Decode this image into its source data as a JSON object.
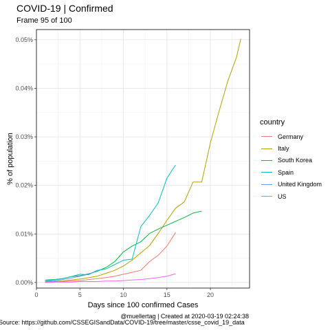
{
  "title": "COVID-19 | Confirmed",
  "subtitle": "Frame 95 of 100",
  "caption_line1": "@muellertag | Created at  2020-03-19 02:24:38",
  "caption_line2": "Source: https://github.com/CSSEGISandData/COVID-19/tree/master/csse_covid_19_data",
  "chart_data": {
    "type": "line",
    "xlabel": "Days since 100 confirmed Cases",
    "ylabel": "% of population",
    "xlim": [
      0,
      24.5
    ],
    "ylim": [
      -0.00115,
      0.0521
    ],
    "x_ticks": [
      0,
      5,
      10,
      15,
      20
    ],
    "x_tick_labels": [
      "0",
      "5",
      "10",
      "15",
      "20"
    ],
    "y_ticks": [
      0,
      0.01,
      0.02,
      0.03,
      0.04,
      0.05
    ],
    "y_tick_labels": [
      "0.00%",
      "0.01%",
      "0.02%",
      "0.03%",
      "0.04%",
      "0.05%"
    ],
    "grid": true,
    "legend_title": "country",
    "legend_position": "right",
    "series": [
      {
        "name": "Germany",
        "color": "#F8766D",
        "x": [
          1,
          2,
          3,
          4,
          5,
          6,
          7,
          8,
          9,
          10,
          11,
          12,
          13,
          14,
          15,
          16
        ],
        "y": [
          0.0001,
          0.0001,
          0.0002,
          0.0003,
          0.0004,
          0.0006,
          0.0008,
          0.001,
          0.0013,
          0.0017,
          0.0021,
          0.0025,
          0.0043,
          0.0056,
          0.0075,
          0.0103
        ]
      },
      {
        "name": "Italy",
        "color": "#B79F00",
        "x": [
          1,
          2,
          3,
          4,
          5,
          6,
          7,
          8,
          9,
          10,
          11,
          12,
          13,
          14,
          15,
          16,
          17,
          18,
          19,
          20,
          21,
          22,
          23,
          23.5
        ],
        "y": [
          0.0001,
          0.0002,
          0.0003,
          0.0005,
          0.0007,
          0.001,
          0.0013,
          0.0019,
          0.0025,
          0.0034,
          0.0046,
          0.0061,
          0.0076,
          0.0101,
          0.0128,
          0.0153,
          0.0166,
          0.0207,
          0.0207,
          0.0288,
          0.0353,
          0.0415,
          0.0464,
          0.0502
        ]
      },
      {
        "name": "South Korea",
        "color": "#00BA38",
        "x": [
          1,
          2,
          3,
          4,
          5,
          6,
          7,
          8,
          9,
          10,
          11,
          12,
          13,
          14,
          15,
          16,
          17,
          18,
          19
        ],
        "y": [
          0.0005,
          0.0006,
          0.0008,
          0.0012,
          0.0014,
          0.0018,
          0.0023,
          0.0031,
          0.0043,
          0.0063,
          0.0075,
          0.0084,
          0.0101,
          0.011,
          0.0118,
          0.0126,
          0.0134,
          0.0143,
          0.0147
        ]
      },
      {
        "name": "Spain",
        "color": "#00BFC4",
        "x": [
          1,
          2,
          3,
          4,
          5,
          6,
          7,
          8,
          9,
          10,
          11,
          12,
          13,
          14,
          15,
          16
        ],
        "y": [
          0.0003,
          0.0005,
          0.0008,
          0.0012,
          0.0017,
          0.0016,
          0.0025,
          0.0028,
          0.0037,
          0.0046,
          0.0048,
          0.0115,
          0.0138,
          0.0164,
          0.0215,
          0.0242
        ]
      },
      {
        "name": "United Kingdom",
        "color": "#619CFF",
        "x": [
          1,
          2,
          3,
          4,
          5,
          6,
          7
        ],
        "y": [
          0.0002,
          0.0003,
          0.0006,
          0.0009,
          0.0013,
          0.0017,
          0.0025
        ]
      },
      {
        "name": "US",
        "color": "#F564E3",
        "x": [
          1,
          2,
          3,
          4,
          5,
          6,
          7,
          8,
          9,
          10,
          11,
          12,
          13,
          14,
          15,
          16
        ],
        "y": [
          0,
          0.0001,
          0.0001,
          0.0001,
          0.0002,
          0.0002,
          0.0002,
          0.0003,
          0.0003,
          0.0004,
          0.0005,
          0.0006,
          0.0008,
          0.001,
          0.0013,
          0.0018
        ]
      }
    ]
  }
}
